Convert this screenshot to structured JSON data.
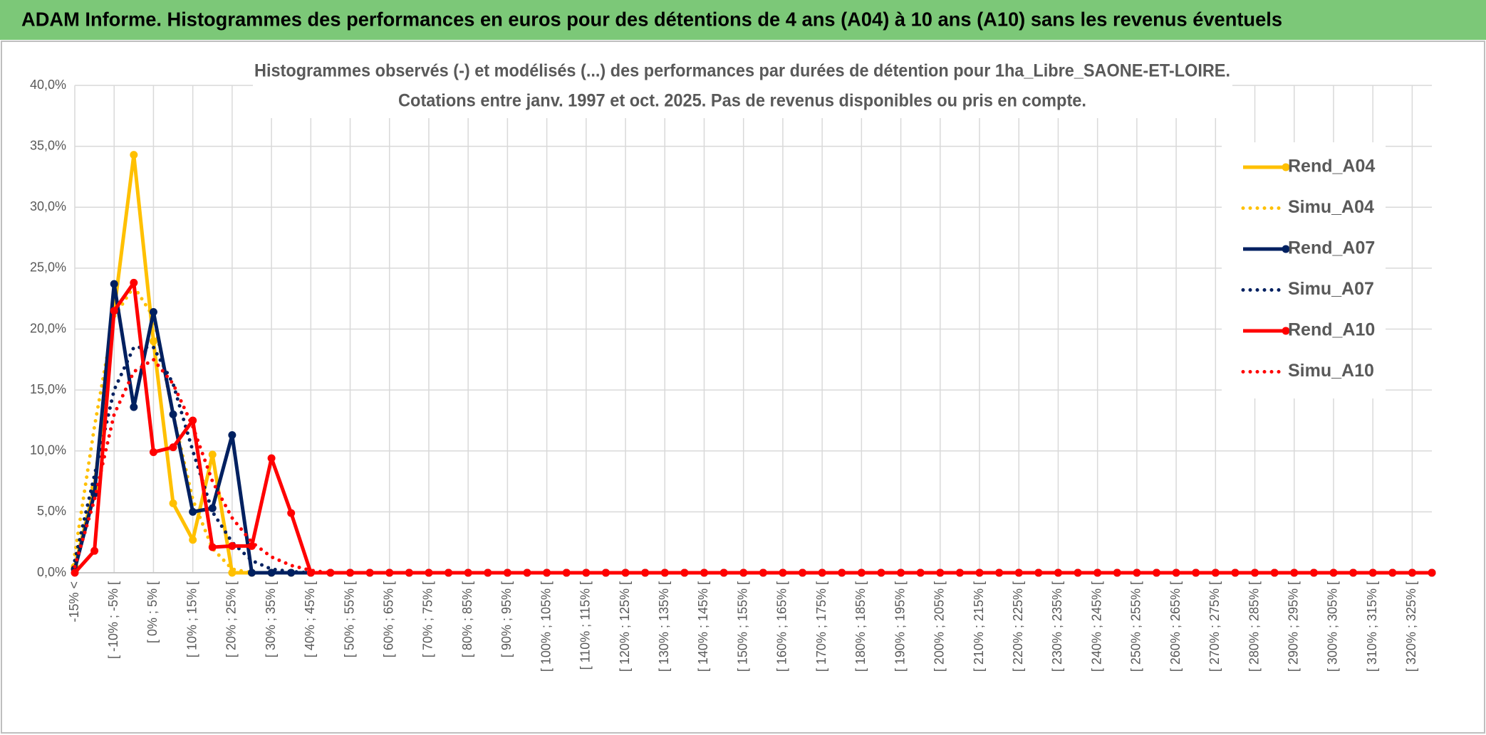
{
  "header": {
    "title": "ADAM Informe. Histogrammes des performances en euros pour des détentions de 4 ans (A04) à 10 ans (A10) sans les revenus éventuels"
  },
  "chart_data": {
    "type": "line",
    "title": "Histogrammes observés (-) et modélisés (...) des performances par durées de détention pour 1ha_Libre_SAONE-ET-LOIRE.",
    "subtitle": "Cotations entre janv. 1997 et oct. 2025. Pas de revenus disponibles ou pris en compte.",
    "categories": [
      "-15% <",
      null,
      "[ -10% ; -5% [",
      null,
      "[ 0% ; 5% [",
      null,
      "[ 10% ; 15% [",
      null,
      "[ 20% ; 25% [",
      null,
      "[ 30% ; 35% [",
      null,
      "[ 40% ; 45% [",
      null,
      "[ 50% ; 55% [",
      null,
      "[ 60% ; 65% [",
      null,
      "[ 70% ; 75% [",
      null,
      "[ 80% ; 85% [",
      null,
      "[ 90% ; 95% [",
      null,
      "[ 100% ; 105% [",
      null,
      "[ 110% ; 115% [",
      null,
      "[ 120% ; 125% [",
      null,
      "[ 130% ; 135% [",
      null,
      "[ 140% ; 145% [",
      null,
      "[ 150% ; 155% [",
      null,
      "[ 160% ; 165% [",
      null,
      "[ 170% ; 175% [",
      null,
      "[ 180% ; 185% [",
      null,
      "[ 190% ; 195% [",
      null,
      "[ 200% ; 205% [",
      null,
      "[ 210% ; 215% [",
      null,
      "[ 220% ; 225% [",
      null,
      "[ 230% ; 235% [",
      null,
      "[ 240% ; 245% [",
      null,
      "[ 250% ; 255% [",
      null,
      "[ 260% ; 265% [",
      null,
      "[ 270% ; 275% [",
      null,
      "[ 280% ; 285% [",
      null,
      "[ 290% ; 295% [",
      null,
      "[ 300% ; 305% [",
      null,
      "[ 310% ; 315% [",
      null,
      "[ 320% ; 325% [",
      null
    ],
    "series": [
      {
        "name": "Rend_A04",
        "color": "#ffc000",
        "line_style": "solid",
        "markers": true,
        "values": [
          0.5,
          7.0,
          21.5,
          34.3,
          19.0,
          5.7,
          2.7,
          9.7,
          0,
          0,
          0,
          0,
          0,
          0,
          0,
          0,
          0,
          0,
          0,
          0,
          0,
          0,
          0,
          0,
          0,
          0,
          0,
          0,
          0,
          0,
          0,
          0,
          0,
          0,
          0,
          0,
          0,
          0,
          0,
          0,
          0,
          0,
          0,
          0,
          0,
          0,
          0,
          0,
          0,
          0,
          0,
          0,
          0,
          0,
          0,
          0,
          0,
          0,
          0,
          0,
          0,
          0,
          0,
          0,
          0,
          0,
          0,
          0,
          0,
          0
        ]
      },
      {
        "name": "Simu_A04",
        "color": "#ffc000",
        "line_style": "dotted",
        "markers": false,
        "values": [
          1.5,
          12.0,
          21.0,
          23.5,
          21.0,
          13.0,
          6.0,
          2.0,
          0.3,
          0,
          0,
          0,
          0,
          0,
          0,
          0,
          0,
          0,
          0,
          0,
          0,
          0,
          0,
          0,
          0,
          0,
          0,
          0,
          0,
          0,
          0,
          0,
          0,
          0,
          0,
          0,
          0,
          0,
          0,
          0,
          0,
          0,
          0,
          0,
          0,
          0,
          0,
          0,
          0,
          0,
          0,
          0,
          0,
          0,
          0,
          0,
          0,
          0,
          0,
          0,
          0,
          0,
          0,
          0,
          0,
          0,
          0,
          0,
          0,
          0
        ]
      },
      {
        "name": "Rend_A07",
        "color": "#002060",
        "line_style": "solid",
        "markers": true,
        "values": [
          0.3,
          6.5,
          23.7,
          13.6,
          21.4,
          13.0,
          5.0,
          5.3,
          11.3,
          0,
          0,
          0,
          0,
          0,
          0,
          0,
          0,
          0,
          0,
          0,
          0,
          0,
          0,
          0,
          0,
          0,
          0,
          0,
          0,
          0,
          0,
          0,
          0,
          0,
          0,
          0,
          0,
          0,
          0,
          0,
          0,
          0,
          0,
          0,
          0,
          0,
          0,
          0,
          0,
          0,
          0,
          0,
          0,
          0,
          0,
          0,
          0,
          0,
          0,
          0,
          0,
          0,
          0,
          0,
          0,
          0,
          0,
          0,
          0,
          0
        ]
      },
      {
        "name": "Simu_A07",
        "color": "#002060",
        "line_style": "dotted",
        "markers": false,
        "values": [
          1.0,
          8.0,
          15.0,
          18.5,
          18.5,
          15.5,
          10.0,
          5.0,
          2.5,
          1.0,
          0.3,
          0.1,
          0,
          0,
          0,
          0,
          0,
          0,
          0,
          0,
          0,
          0,
          0,
          0,
          0,
          0,
          0,
          0,
          0,
          0,
          0,
          0,
          0,
          0,
          0,
          0,
          0,
          0,
          0,
          0,
          0,
          0,
          0,
          0,
          0,
          0,
          0,
          0,
          0,
          0,
          0,
          0,
          0,
          0,
          0,
          0,
          0,
          0,
          0,
          0,
          0,
          0,
          0,
          0,
          0,
          0,
          0,
          0,
          0,
          0
        ]
      },
      {
        "name": "Rend_A10",
        "color": "#ff0000",
        "line_style": "solid",
        "markers": true,
        "values": [
          0,
          1.8,
          21.5,
          23.8,
          9.9,
          10.3,
          12.5,
          2.1,
          2.2,
          2.2,
          9.4,
          4.9,
          0,
          0,
          0,
          0,
          0,
          0,
          0,
          0,
          0,
          0,
          0,
          0,
          0,
          0,
          0,
          0,
          0,
          0,
          0,
          0,
          0,
          0,
          0,
          0,
          0,
          0,
          0,
          0,
          0,
          0,
          0,
          0,
          0,
          0,
          0,
          0,
          0,
          0,
          0,
          0,
          0,
          0,
          0,
          0,
          0,
          0,
          0,
          0,
          0,
          0,
          0,
          0,
          0,
          0,
          0,
          0,
          0,
          0
        ]
      },
      {
        "name": "Simu_A10",
        "color": "#ff0000",
        "line_style": "dotted",
        "markers": false,
        "values": [
          0.5,
          6.0,
          13.0,
          16.5,
          17.5,
          15.5,
          12.0,
          7.5,
          4.5,
          2.5,
          1.3,
          0.6,
          0.2,
          0,
          0,
          0,
          0,
          0,
          0,
          0,
          0,
          0,
          0,
          0,
          0,
          0,
          0,
          0,
          0,
          0,
          0,
          0,
          0,
          0,
          0,
          0,
          0,
          0,
          0,
          0,
          0,
          0,
          0,
          0,
          0,
          0,
          0,
          0,
          0,
          0,
          0,
          0,
          0,
          0,
          0,
          0,
          0,
          0,
          0,
          0,
          0,
          0,
          0,
          0,
          0,
          0,
          0,
          0,
          0,
          0
        ]
      }
    ],
    "ylim": [
      0,
      40
    ],
    "yticks": [
      {
        "value": 0,
        "label": "0,0%"
      },
      {
        "value": 5,
        "label": "5,0%"
      },
      {
        "value": 10,
        "label": "10,0%"
      },
      {
        "value": 15,
        "label": "15,0%"
      },
      {
        "value": 20,
        "label": "20,0%"
      },
      {
        "value": 25,
        "label": "25,0%"
      },
      {
        "value": 30,
        "label": "30,0%"
      },
      {
        "value": 35,
        "label": "35,0%"
      },
      {
        "value": 40,
        "label": "40,0%"
      }
    ],
    "grid": true,
    "legend_position": "right"
  }
}
